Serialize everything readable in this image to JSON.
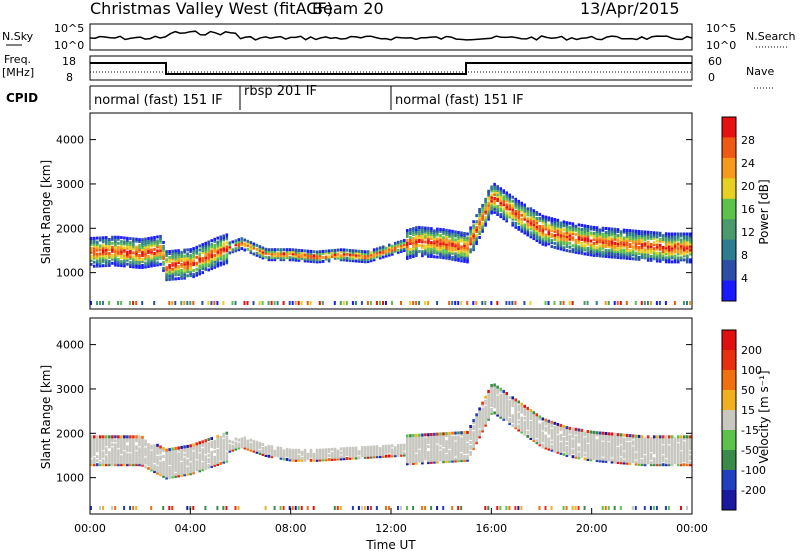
{
  "header": {
    "title": "Christmas Valley West (fitACF)",
    "beam": "Beam 20",
    "date": "13/Apr/2015"
  },
  "top_panel_labels": {
    "nsky": "N.Sky",
    "nsearch": "N.Search",
    "freq": "Freq.",
    "freq_unit": "[MHz]",
    "nave": "Nave",
    "cpid": "CPID",
    "noise_ticks_left": [
      "10^5",
      "10^0"
    ],
    "noise_ticks_right": [
      "10^5",
      "10^0"
    ],
    "freq_ticks": [
      "18",
      "8"
    ],
    "nave_ticks": [
      "60",
      "0"
    ]
  },
  "cpid_segments": [
    {
      "start_hour": 0,
      "end_hour": 6,
      "label": "normal (fast) 151 IF"
    },
    {
      "start_hour": 6,
      "end_hour": 12,
      "label": "rbsp 201 IF"
    },
    {
      "start_hour": 12,
      "end_hour": 24,
      "label": "normal (fast) 151 IF"
    }
  ],
  "axes": {
    "x_label": "Time UT",
    "x_ticks": [
      "00:00",
      "04:00",
      "08:00",
      "12:00",
      "16:00",
      "20:00",
      "00:00"
    ],
    "y_label": "Slant Range [km]",
    "y_ticks": [
      "1000",
      "2000",
      "3000",
      "4000"
    ]
  },
  "power_colorbar": {
    "label": "Power [dB]",
    "ticks": [
      "4",
      "8",
      "12",
      "16",
      "20",
      "24",
      "28"
    ],
    "colors": [
      "#1a1aff",
      "#2b4fa8",
      "#2e7d8f",
      "#4a9a6e",
      "#5cc24a",
      "#e8d020",
      "#f59a1a",
      "#ee5a12",
      "#e81010"
    ]
  },
  "velocity_colorbar": {
    "label": "Velocity [m s⁻¹]",
    "ticks": [
      "200",
      "100",
      "50",
      "15",
      "-15",
      "-50",
      "-100",
      "-200"
    ],
    "colors": [
      "#1a1aa0",
      "#2040c0",
      "#3a8a4a",
      "#5cc24a",
      "#c8c8c0",
      "#f0b020",
      "#f07010",
      "#e83010",
      "#e01010"
    ]
  },
  "chart_data": {
    "type": "heatmap",
    "title": "Christmas Valley West (fitACF)",
    "xlabel": "Time UT",
    "ylabel": "Slant Range [km]",
    "xlim_hours": [
      0,
      24
    ],
    "ylim_km": [
      180,
      4600
    ],
    "power_band_trace": {
      "x_hours": [
        0,
        1,
        2,
        2.8,
        3,
        4,
        5,
        6,
        7,
        8,
        9,
        10,
        11,
        13,
        14,
        15,
        16,
        17,
        18,
        19,
        20,
        21,
        22,
        23,
        24
      ],
      "y_km": [
        1450,
        1480,
        1420,
        1500,
        1150,
        1200,
        1450,
        1650,
        1400,
        1400,
        1350,
        1400,
        1350,
        1700,
        1650,
        1550,
        2700,
        2300,
        1950,
        1800,
        1700,
        1650,
        1600,
        1550,
        1550
      ]
    },
    "velocity_band_trace": {
      "x_hours": [
        0,
        1,
        2,
        3,
        4,
        5,
        6,
        7,
        8,
        9,
        15,
        16,
        17,
        18,
        19,
        20,
        21,
        22,
        23,
        24
      ],
      "y_km": [
        1600,
        1600,
        1600,
        1300,
        1400,
        1600,
        1800,
        1600,
        1500,
        1500,
        1700,
        2800,
        2400,
        2000,
        1800,
        1700,
        1650,
        1600,
        1600,
        1600
      ]
    }
  }
}
